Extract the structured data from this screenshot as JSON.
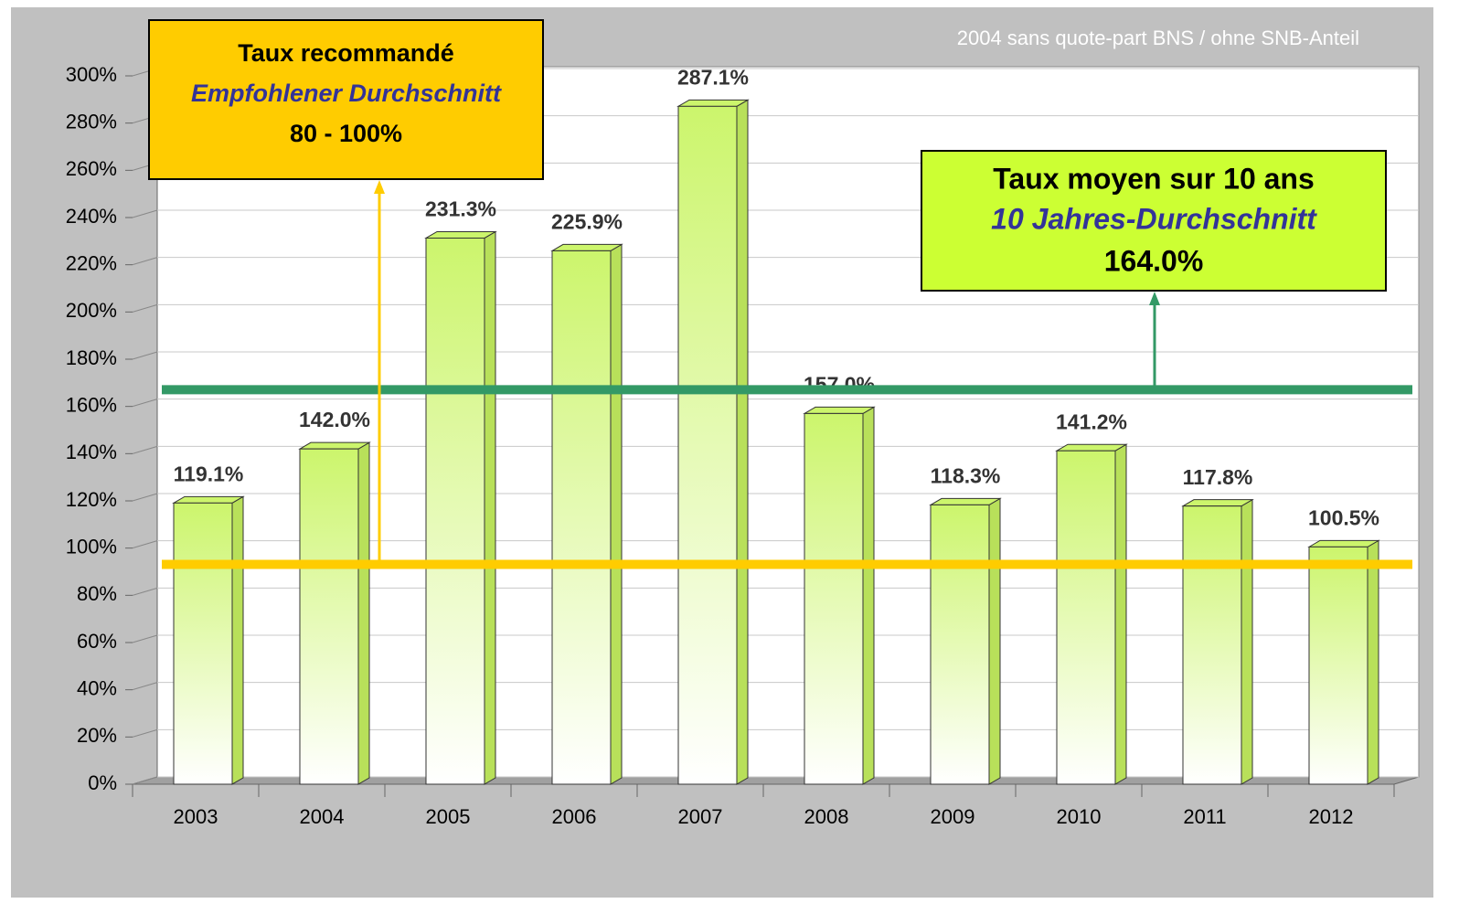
{
  "chart_data": {
    "type": "bar",
    "note": "2004 sans quote-part BNS / ohne SNB-Anteil",
    "categories": [
      "2003",
      "2004",
      "2005",
      "2006",
      "2007",
      "2008",
      "2009",
      "2010",
      "2011",
      "2012"
    ],
    "values": [
      119.1,
      142.0,
      231.3,
      225.9,
      287.1,
      157.0,
      118.3,
      141.2,
      117.8,
      100.5
    ],
    "value_labels": [
      "119.1%",
      "142.0%",
      "231.3%",
      "225.9%",
      "287.1%",
      "157.0%",
      "118.3%",
      "141.2%",
      "117.8%",
      "100.5%"
    ],
    "color": "#ccf56c",
    "ylim": [
      0,
      300
    ],
    "yticks": [
      {
        "value": 0,
        "label": "0%"
      },
      {
        "value": 20,
        "label": "20%"
      },
      {
        "value": 40,
        "label": "40%"
      },
      {
        "value": 60,
        "label": "60%"
      },
      {
        "value": 80,
        "label": "80%"
      },
      {
        "value": 100,
        "label": "100%"
      },
      {
        "value": 120,
        "label": "120%"
      },
      {
        "value": 140,
        "label": "140%"
      },
      {
        "value": 160,
        "label": "160%"
      },
      {
        "value": 180,
        "label": "180%"
      },
      {
        "value": 200,
        "label": "200%"
      },
      {
        "value": 220,
        "label": "220%"
      },
      {
        "value": 240,
        "label": "240%"
      },
      {
        "value": 260,
        "label": "260%"
      },
      {
        "value": 280,
        "label": "280%"
      },
      {
        "value": 300,
        "label": "300%"
      }
    ],
    "grid": true,
    "reference_lines": [
      {
        "value": 164.0,
        "color": "#339966"
      },
      {
        "value": 90,
        "color": "#ffcc00"
      }
    ],
    "annotations": [
      {
        "lines": [
          "Taux recommandé",
          "Empfohlener Durchschnitt",
          "80 - 100%"
        ],
        "color": "#ffcc00"
      },
      {
        "lines": [
          "Taux moyen sur 10 ans",
          "10 Jahres-Durchschnitt",
          "164.0%"
        ],
        "color": "#ccff33"
      }
    ]
  }
}
